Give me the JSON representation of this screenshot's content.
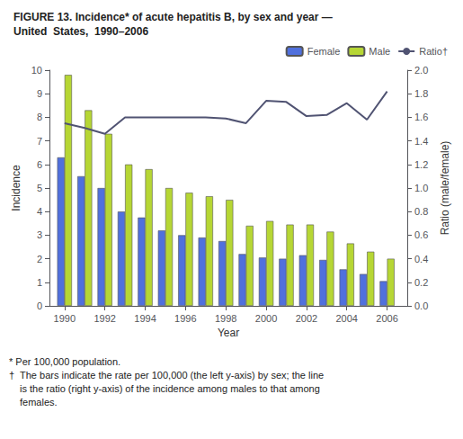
{
  "chart_data": {
    "type": "bar",
    "title": "FIGURE 13. Incidence* of acute hepatitis B, by sex and year —",
    "subtitle": "United  States,  1990–2006",
    "xlabel": "Year",
    "ylabel": "Incidence",
    "y2label": "Ratio (male/female)",
    "x": [
      1990,
      1991,
      1992,
      1993,
      1994,
      1995,
      1996,
      1997,
      1998,
      1999,
      2000,
      2001,
      2002,
      2003,
      2004,
      2005,
      2006
    ],
    "xlim": [
      1989.25,
      2007.0
    ],
    "xticks": [
      1990,
      1992,
      1994,
      1996,
      1998,
      2000,
      2002,
      2004,
      2006
    ],
    "ylim": [
      0,
      10
    ],
    "yticks": [
      0,
      1,
      2,
      3,
      4,
      5,
      6,
      7,
      8,
      9,
      10
    ],
    "y2lim": [
      0,
      2.0
    ],
    "y2ticks": [
      {
        "value": 0.0,
        "label": "0.0"
      },
      0.2,
      0.4,
      0.6,
      0.8,
      {
        "value": 1.0,
        "label": "1.0"
      },
      1.2,
      1.4,
      1.6,
      1.8,
      {
        "value": 2.0,
        "label": "2.0"
      }
    ],
    "series": [
      {
        "name": "Female",
        "values": [
          6.3,
          5.5,
          5.0,
          4.0,
          3.75,
          3.2,
          3.0,
          2.9,
          2.75,
          2.2,
          2.05,
          2.0,
          2.15,
          1.95,
          1.55,
          1.35,
          1.05
        ]
      },
      {
        "name": "Male",
        "values": [
          9.8,
          8.3,
          7.3,
          6.0,
          5.8,
          5.0,
          4.8,
          4.65,
          4.5,
          3.4,
          3.6,
          3.45,
          3.45,
          3.15,
          2.65,
          2.3,
          2.0
        ]
      },
      {
        "name": "Ratio†",
        "type": "line",
        "axis": "y2",
        "values": [
          1.55,
          1.51,
          1.46,
          1.6,
          1.6,
          1.6,
          1.6,
          1.6,
          1.59,
          1.55,
          1.74,
          1.73,
          1.61,
          1.62,
          1.72,
          1.58,
          1.82
        ]
      }
    ],
    "legend": "upper right",
    "grid": false,
    "annotations": [
      "* Per 100,000 population.",
      "†",
      "The bars indicate the rate per 100,000 (the left y-axis) by sex; the line",
      "is the ratio (right y-axis) of the incidence among males to that among",
      "females."
    ]
  }
}
